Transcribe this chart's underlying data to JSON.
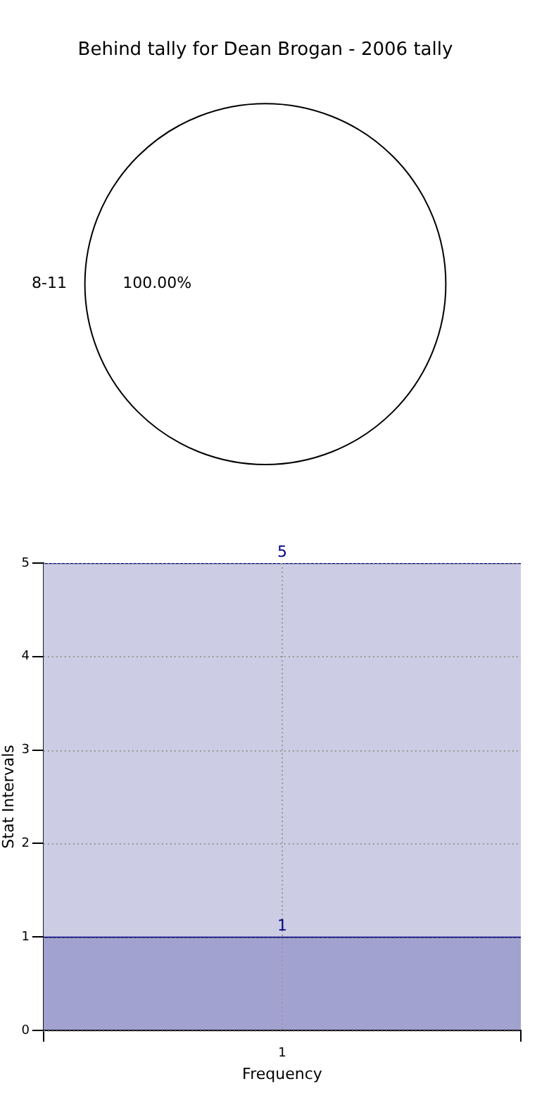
{
  "chart_data": [
    {
      "type": "pie",
      "title": "Behind tally for Dean Brogan - 2006 tally",
      "categories": [
        "8-11"
      ],
      "values": [
        100
      ],
      "colors": [
        "#ffffff"
      ],
      "value_labels": [
        "100.00%"
      ],
      "legend": false
    },
    {
      "type": "bar",
      "xlabel": "Frequency",
      "ylabel": "Stat Intervals",
      "categories": [
        "1"
      ],
      "series": [
        {
          "color": "#a2a2d0",
          "values": [
            1
          ],
          "value_labels": [
            "1"
          ]
        },
        {
          "color": "#cccce4",
          "values": [
            4
          ]
        }
      ],
      "stacked": true,
      "totals": [
        "5"
      ],
      "ylim": [
        0,
        5
      ],
      "yticks": [
        0,
        1,
        2,
        3,
        4,
        5
      ],
      "grid": true,
      "legend": false
    }
  ]
}
